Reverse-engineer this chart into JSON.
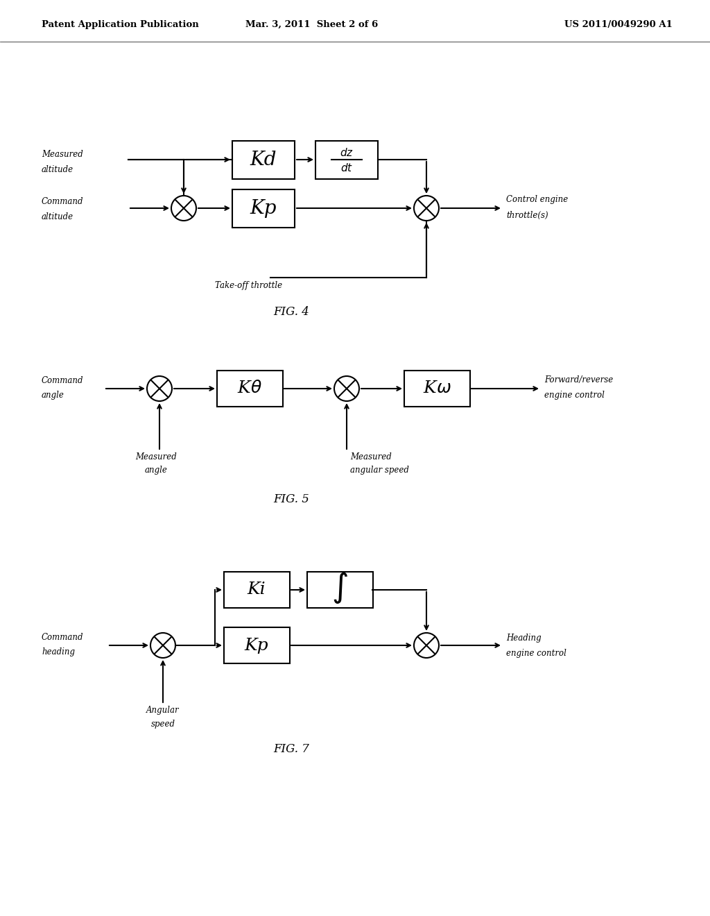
{
  "title_left": "Patent Application Publication",
  "title_mid": "Mar. 3, 2011  Sheet 2 of 6",
  "title_right": "US 2011/0049290 A1",
  "bg_color": "#ffffff",
  "line_color": "#000000",
  "fig4_label": "FIG. 4",
  "fig5_label": "FIG. 5",
  "fig7_label": "FIG. 7"
}
